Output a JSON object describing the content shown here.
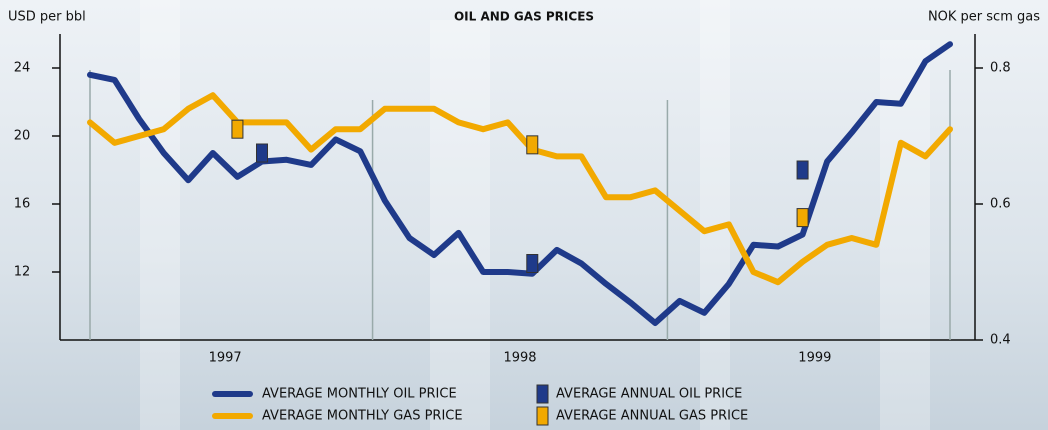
{
  "chart_data": {
    "type": "line",
    "title": "OIL AND GAS PRICES",
    "y_label": "USD per bbl",
    "y2_label": "NOK per scm gas",
    "categories": [
      null,
      null,
      null,
      null,
      null,
      "1997",
      null,
      null,
      null,
      null,
      null,
      null,
      null,
      null,
      null,
      null,
      null,
      "1998",
      null,
      null,
      null,
      null,
      null,
      null,
      null,
      null,
      null,
      null,
      null,
      "1999",
      null,
      null,
      null,
      null,
      null,
      null
    ],
    "ylim": [
      8,
      26
    ],
    "yticks": [
      12,
      16,
      20,
      24
    ],
    "y2lim": [
      0.4,
      0.85
    ],
    "y2ticks": [
      0.4,
      0.6,
      0.8
    ],
    "series": [
      {
        "name": "AVERAGE MONTHLY OIL PRICE",
        "color": "#1f3a8a",
        "style": "line",
        "axis": "y",
        "values": [
          23.6,
          23.3,
          21.0,
          19.0,
          17.4,
          19.0,
          17.6,
          18.5,
          18.6,
          18.3,
          19.8,
          19.1,
          16.2,
          14.0,
          13.0,
          14.3,
          12.0,
          12.0,
          11.9,
          13.3,
          12.5,
          11.3,
          10.2,
          9.0,
          10.3,
          9.6,
          11.3,
          13.6,
          13.5,
          14.2,
          18.5,
          20.2,
          22.0,
          21.9,
          24.4,
          25.4
        ]
      },
      {
        "name": "AVERAGE MONTHLY GAS PRICE",
        "color": "#f2a900",
        "style": "line",
        "axis": "y2",
        "values": [
          0.72,
          0.69,
          0.7,
          0.71,
          0.74,
          0.76,
          0.72,
          0.72,
          0.72,
          0.68,
          0.71,
          0.71,
          0.74,
          0.74,
          0.74,
          0.72,
          0.71,
          0.72,
          0.68,
          0.67,
          0.67,
          0.61,
          0.61,
          0.62,
          0.59,
          0.56,
          0.57,
          0.5,
          0.485,
          0.515,
          0.54,
          0.55,
          0.54,
          0.69,
          0.67,
          0.71
        ]
      },
      {
        "name": "AVERAGE ANNUAL OIL PRICE",
        "color": "#1f3a8a",
        "style": "marker",
        "axis": "y",
        "values": [
          null,
          null,
          null,
          null,
          null,
          null,
          null,
          19.0,
          null,
          null,
          null,
          null,
          null,
          null,
          null,
          null,
          null,
          null,
          12.5,
          null,
          null,
          null,
          null,
          null,
          null,
          null,
          null,
          null,
          null,
          18.0,
          null,
          null,
          null,
          null,
          null,
          null
        ]
      },
      {
        "name": "AVERAGE ANNUAL GAS PRICE",
        "color": "#f2a900",
        "style": "marker",
        "axis": "y2",
        "values": [
          null,
          null,
          null,
          null,
          null,
          null,
          0.71,
          null,
          null,
          null,
          null,
          null,
          null,
          null,
          null,
          null,
          null,
          null,
          0.687,
          null,
          null,
          null,
          null,
          null,
          null,
          null,
          null,
          null,
          null,
          0.58,
          null,
          null,
          null,
          null,
          null,
          null
        ]
      }
    ]
  }
}
